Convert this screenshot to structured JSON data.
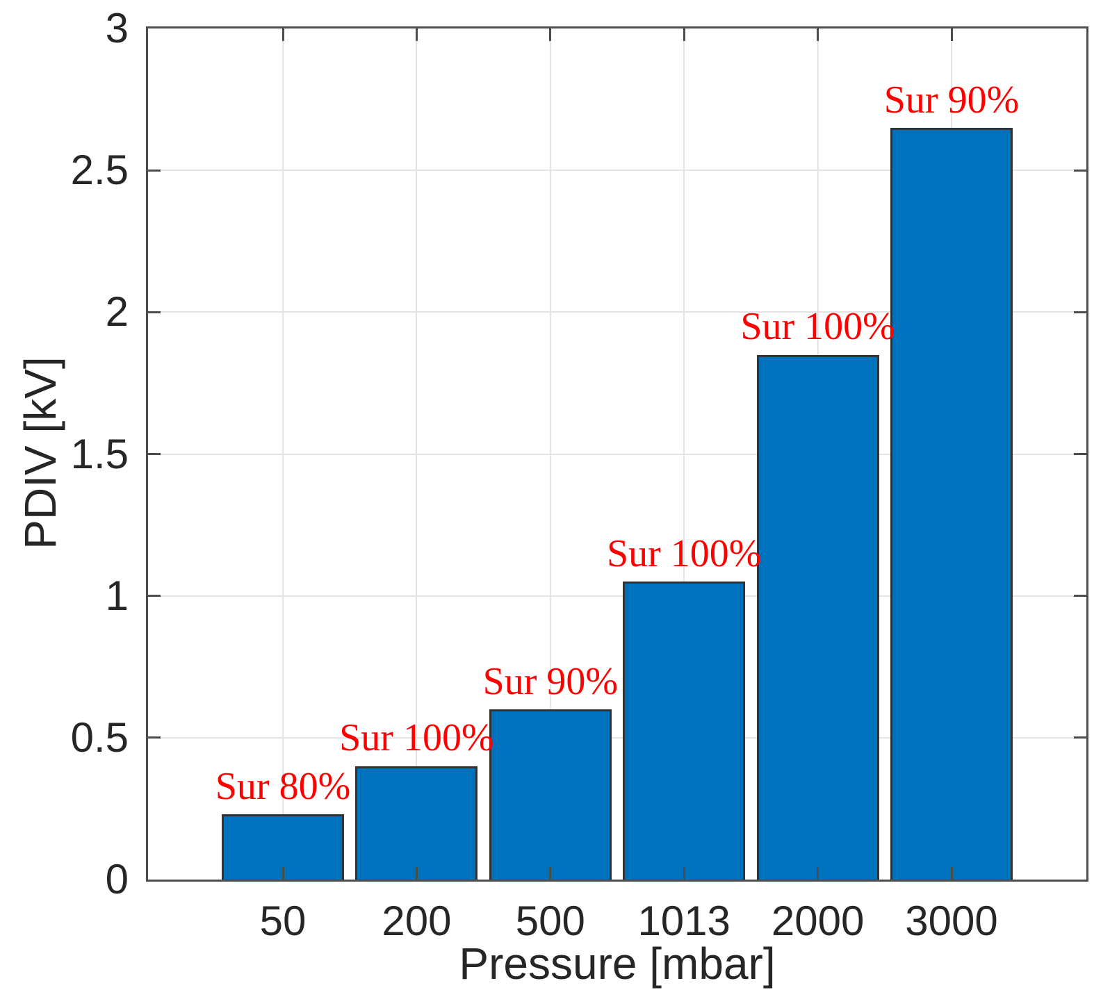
{
  "chart_data": {
    "type": "bar",
    "title": "",
    "xlabel": "Pressure [mbar]",
    "ylabel": "PDIV [kV]",
    "categories": [
      "50",
      "200",
      "500",
      "1013",
      "2000",
      "3000"
    ],
    "values": [
      0.23,
      0.4,
      0.6,
      1.05,
      1.85,
      2.65
    ],
    "bar_labels": [
      "Sur 80%",
      "Sur 100%",
      "Sur 90%",
      "Sur 100%",
      "Sur 100%",
      "Sur 90%"
    ],
    "ylim": [
      0,
      3
    ],
    "yticks": [
      0,
      0.5,
      1,
      1.5,
      2,
      2.5,
      3
    ],
    "grid": true,
    "legend": null,
    "colors": {
      "bar_fill": "#0072BD",
      "bar_edge": "#333333",
      "annotation": "#FF0000",
      "axis_frame": "#4d4d4d",
      "gridline": "#e4e4e4",
      "tick_mark": "#4d4d4d",
      "text": "#262626"
    }
  }
}
